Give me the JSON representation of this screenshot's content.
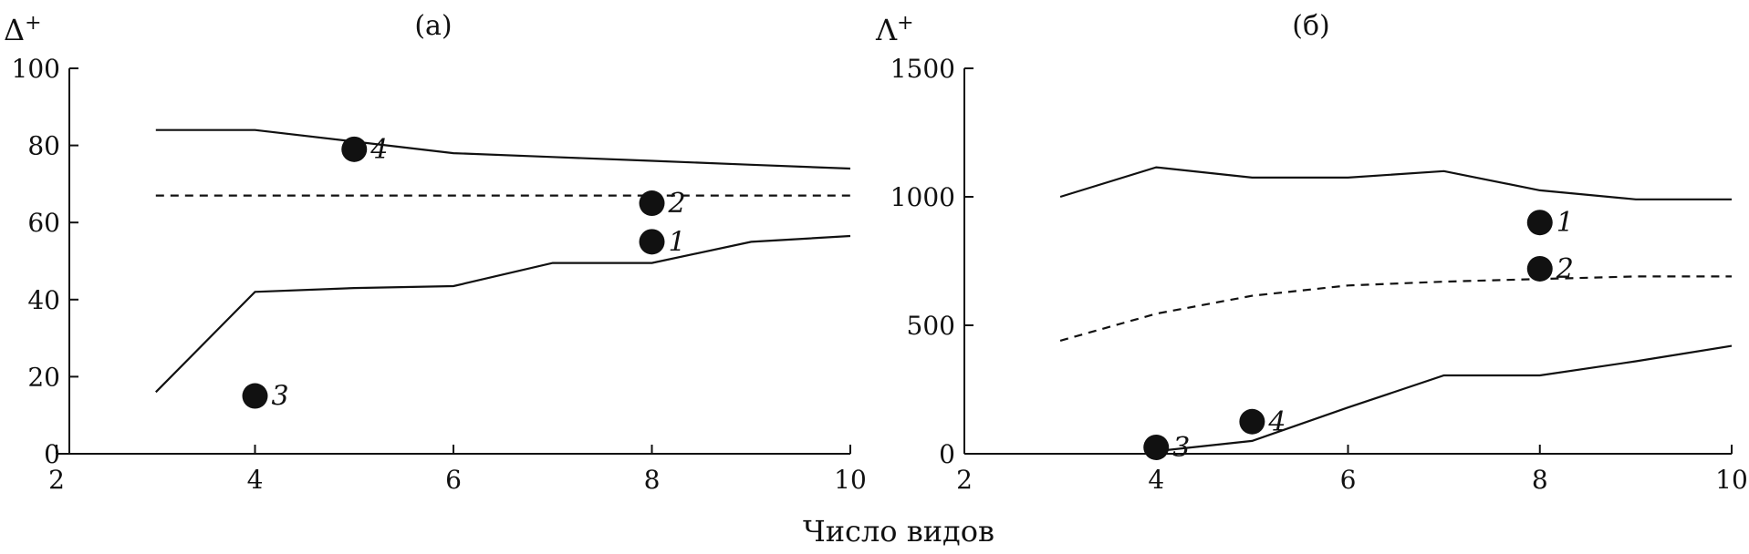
{
  "chart_data": [
    {
      "type": "line",
      "title": "(а)",
      "ylabel": "Δ+",
      "xlabel": "Число видов",
      "xlim": [
        2,
        10
      ],
      "ylim": [
        0,
        100
      ],
      "xticks": [
        2,
        4,
        6,
        8,
        10
      ],
      "yticks": [
        0,
        20,
        40,
        60,
        80,
        100
      ],
      "series": [
        {
          "style": "solid",
          "x": [
            3,
            4,
            5,
            6,
            7,
            8,
            9,
            10
          ],
          "y": [
            84,
            84,
            81,
            78,
            77,
            76,
            75,
            74
          ]
        },
        {
          "style": "dashed",
          "x": [
            3,
            10
          ],
          "y": [
            67,
            67
          ]
        },
        {
          "style": "solid",
          "x": [
            3,
            4,
            5,
            6,
            7,
            8,
            9,
            10
          ],
          "y": [
            16,
            42,
            43,
            43.5,
            49.5,
            49.5,
            55,
            56.5
          ]
        }
      ],
      "points": [
        {
          "label": "1",
          "x": 8,
          "y": 55
        },
        {
          "label": "2",
          "x": 8,
          "y": 65
        },
        {
          "label": "3",
          "x": 4,
          "y": 15
        },
        {
          "label": "4",
          "x": 5,
          "y": 79
        }
      ]
    },
    {
      "type": "line",
      "title": "(б)",
      "ylabel": "Λ+",
      "xlabel": "Число видов",
      "xlim": [
        2,
        10
      ],
      "ylim": [
        0,
        1500
      ],
      "xticks": [
        2,
        4,
        6,
        8,
        10
      ],
      "yticks": [
        0,
        500,
        1000,
        1500
      ],
      "series": [
        {
          "style": "solid",
          "x": [
            3,
            4,
            5,
            6,
            7,
            8,
            9,
            10
          ],
          "y": [
            1000,
            1115,
            1075,
            1075,
            1100,
            1025,
            990,
            990
          ]
        },
        {
          "style": "dashed",
          "x": [
            3,
            4,
            5,
            6,
            7,
            8,
            9,
            10
          ],
          "y": [
            440,
            545,
            615,
            655,
            670,
            680,
            690,
            690
          ]
        },
        {
          "style": "solid",
          "x": [
            4,
            5,
            6,
            7,
            8,
            9,
            10
          ],
          "y": [
            10,
            50,
            180,
            305,
            305,
            360,
            420
          ]
        }
      ],
      "points": [
        {
          "label": "1",
          "x": 8,
          "y": 900
        },
        {
          "label": "2",
          "x": 8,
          "y": 720
        },
        {
          "label": "3",
          "x": 4,
          "y": 25
        },
        {
          "label": "4",
          "x": 5,
          "y": 125
        }
      ]
    }
  ]
}
